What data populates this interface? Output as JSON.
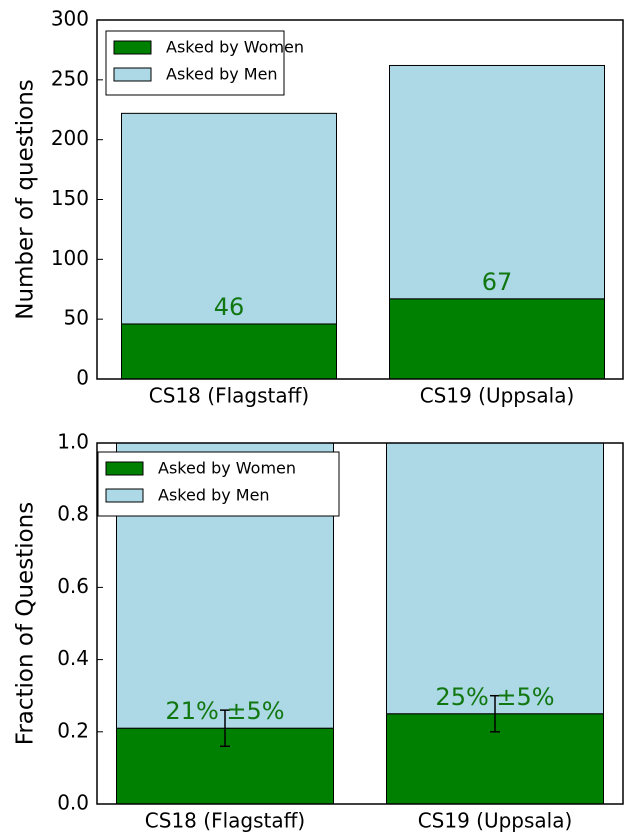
{
  "chart_data": [
    {
      "type": "bar",
      "stacked": true,
      "ylabel": "Number of questions",
      "categories": [
        "CS18 (Flagstaff)",
        "CS19 (Uppsala)"
      ],
      "series": [
        {
          "name": "Asked by Women",
          "color": "#008000",
          "values": [
            46,
            67
          ]
        },
        {
          "name": "Asked by Men",
          "color": "#add8e6",
          "values": [
            176,
            195
          ]
        }
      ],
      "ylim": [
        0,
        300
      ],
      "yticks": [
        0,
        50,
        100,
        150,
        200,
        250,
        300
      ],
      "legend": "upper left"
    },
    {
      "type": "bar",
      "stacked": true,
      "ylabel": "Fraction of Questions",
      "categories": [
        "CS18 (Flagstaff)",
        "CS19 (Uppsala)"
      ],
      "series": [
        {
          "name": "Asked by Women",
          "color": "#008000",
          "values": [
            0.21,
            0.25
          ],
          "error": [
            0.05,
            0.05
          ],
          "value_labels": [
            "21% ±5%",
            "25% ±5%"
          ]
        },
        {
          "name": "Asked by Men",
          "color": "#add8e6",
          "values": [
            0.79,
            0.75
          ]
        }
      ],
      "ylim": [
        0,
        1
      ],
      "yticks": [
        {
          "value": 0,
          "label": "0.0"
        },
        0.2,
        0.4,
        0.6,
        0.8,
        {
          "value": 1,
          "label": "1.0"
        }
      ],
      "legend": "upper left"
    }
  ]
}
